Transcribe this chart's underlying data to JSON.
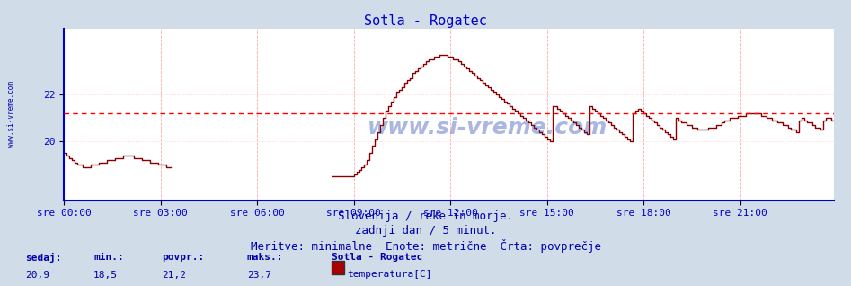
{
  "title": "Sotla - Rogatec",
  "title_color": "#0000cc",
  "title_fontsize": 11,
  "bg_color": "#d0dce8",
  "plot_bg_color": "#ffffff",
  "line_color": "#880000",
  "avg_line_color": "#ff0000",
  "avg_value": 21.2,
  "ymin": 17.5,
  "ymax": 24.8,
  "yticks": [
    20,
    22
  ],
  "axis_color": "#0000cc",
  "xtick_labels": [
    "sre 00:00",
    "sre 03:00",
    "sre 06:00",
    "sre 09:00",
    "sre 12:00",
    "sre 15:00",
    "sre 18:00",
    "sre 21:00"
  ],
  "grid_color_v": "#ffaaaa",
  "grid_color_h": "#ffcccc",
  "footer_line1": "Slovenija / reke in morje.",
  "footer_line2": "zadnji dan / 5 minut.",
  "footer_line3": "Meritve: minimalne  Enote: metrične  Črta: povprečje",
  "footer_color": "#0000aa",
  "footer_fontsize": 9,
  "stats_labels": [
    "sedaj:",
    "min.:",
    "povpr.:",
    "maks.:"
  ],
  "stats_values": [
    "20,9",
    "18,5",
    "21,2",
    "23,7"
  ],
  "stats_color": "#0000aa",
  "legend_title": "Sotla - Rogatec",
  "legend_label": "temperatura[C]",
  "legend_color": "#aa0000",
  "left_label": "www.si-vreme.com",
  "left_label_color": "#0000aa",
  "watermark": "www.si-vreme.com",
  "n_points": 288,
  "temp_data": [
    19.5,
    19.4,
    19.3,
    19.2,
    19.1,
    19.0,
    19.0,
    18.9,
    18.9,
    18.9,
    19.0,
    19.0,
    19.0,
    19.1,
    19.1,
    19.1,
    19.2,
    19.2,
    19.2,
    19.3,
    19.3,
    19.3,
    19.4,
    19.4,
    19.4,
    19.4,
    19.3,
    19.3,
    19.3,
    19.2,
    19.2,
    19.2,
    19.1,
    19.1,
    19.1,
    19.0,
    19.0,
    19.0,
    18.9,
    18.9,
    null,
    null,
    null,
    null,
    null,
    null,
    null,
    null,
    null,
    null,
    null,
    null,
    null,
    null,
    null,
    null,
    null,
    null,
    null,
    null,
    null,
    null,
    null,
    null,
    null,
    null,
    null,
    null,
    null,
    null,
    null,
    null,
    null,
    null,
    null,
    null,
    null,
    null,
    null,
    null,
    null,
    null,
    null,
    null,
    null,
    null,
    null,
    null,
    null,
    null,
    null,
    null,
    null,
    null,
    null,
    null,
    null,
    null,
    null,
    null,
    18.5,
    18.5,
    18.5,
    18.5,
    18.5,
    18.5,
    18.5,
    18.5,
    18.6,
    18.7,
    18.8,
    18.9,
    19.0,
    19.2,
    19.5,
    19.8,
    20.1,
    20.4,
    20.7,
    21.0,
    21.3,
    21.5,
    21.7,
    21.9,
    22.1,
    22.2,
    22.3,
    22.5,
    22.6,
    22.7,
    22.9,
    23.0,
    23.1,
    23.2,
    23.3,
    23.4,
    23.5,
    23.5,
    23.6,
    23.6,
    23.7,
    23.7,
    23.7,
    23.6,
    23.6,
    23.5,
    23.5,
    23.4,
    23.3,
    23.2,
    23.1,
    23.0,
    22.9,
    22.8,
    22.7,
    22.6,
    22.5,
    22.4,
    22.3,
    22.2,
    22.1,
    22.0,
    21.9,
    21.8,
    21.7,
    21.6,
    21.5,
    21.4,
    21.3,
    21.2,
    21.1,
    21.0,
    20.9,
    20.8,
    20.7,
    20.6,
    20.5,
    20.4,
    20.3,
    20.2,
    20.1,
    20.0,
    21.5,
    21.5,
    21.4,
    21.3,
    21.2,
    21.1,
    21.0,
    20.9,
    20.8,
    20.7,
    20.6,
    20.5,
    20.4,
    20.3,
    21.5,
    21.4,
    21.3,
    21.2,
    21.1,
    21.0,
    20.9,
    20.8,
    20.7,
    20.6,
    20.5,
    20.4,
    20.3,
    20.2,
    20.1,
    20.0,
    21.2,
    21.3,
    21.4,
    21.3,
    21.2,
    21.1,
    21.0,
    20.9,
    20.8,
    20.7,
    20.6,
    20.5,
    20.4,
    20.3,
    20.2,
    20.1,
    21.0,
    20.9,
    20.8,
    20.8,
    20.7,
    20.7,
    20.6,
    20.6,
    20.5,
    20.5,
    20.5,
    20.5,
    20.6,
    20.6,
    20.6,
    20.7,
    20.7,
    20.8,
    20.9,
    20.9,
    21.0,
    21.0,
    21.0,
    21.1,
    21.1,
    21.1,
    21.2,
    21.2,
    21.2,
    21.2,
    21.2,
    21.2,
    21.1,
    21.1,
    21.0,
    21.0,
    20.9,
    20.9,
    20.8,
    20.8,
    20.7,
    20.7,
    20.6,
    20.5,
    20.5,
    20.4,
    20.9,
    21.0,
    20.9,
    20.8,
    20.8,
    20.7,
    20.6,
    20.6,
    20.5,
    20.9,
    21.0,
    21.0,
    20.9,
    20.9
  ]
}
